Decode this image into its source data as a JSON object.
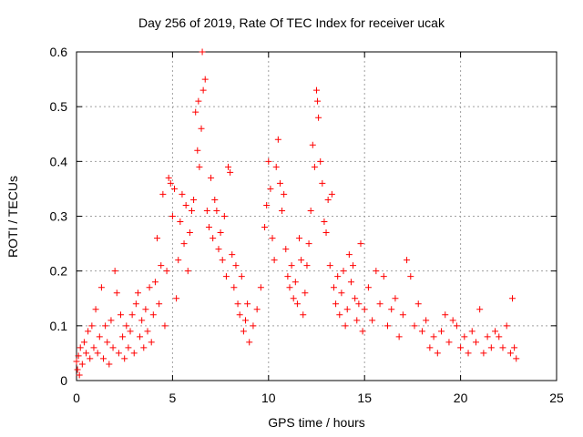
{
  "chart_data": {
    "type": "scatter",
    "title": "Day 256 of 2019, Rate Of TEC Index for receiver ucak",
    "xlabel": "GPS time / hours",
    "ylabel": "ROTI / TECUs",
    "xlim": [
      0,
      25
    ],
    "ylim": [
      0,
      0.6
    ],
    "xticks": [
      0,
      5,
      10,
      15,
      20,
      25
    ],
    "xtick_labels": [
      "0",
      "5",
      "10",
      "15",
      "20",
      "25"
    ],
    "yticks": [
      0,
      0.1,
      0.2,
      0.3,
      0.4,
      0.5,
      0.6
    ],
    "ytick_labels": [
      "0",
      "0.1",
      "0.2",
      "0.3",
      "0.4",
      "0.5",
      "0.6"
    ],
    "grid": true,
    "marker": "plus",
    "color": "#ff0000",
    "series": [
      {
        "points": [
          [
            0.0,
            0.035
          ],
          [
            0.05,
            0.02
          ],
          [
            0.1,
            0.045
          ],
          [
            0.15,
            0.01
          ],
          [
            0.2,
            0.06
          ],
          [
            0.3,
            0.03
          ],
          [
            0.4,
            0.07
          ],
          [
            0.5,
            0.05
          ],
          [
            0.6,
            0.09
          ],
          [
            0.7,
            0.04
          ],
          [
            0.8,
            0.1
          ],
          [
            0.9,
            0.06
          ],
          [
            1.0,
            0.13
          ],
          [
            1.1,
            0.05
          ],
          [
            1.2,
            0.08
          ],
          [
            1.3,
            0.17
          ],
          [
            1.4,
            0.04
          ],
          [
            1.5,
            0.1
          ],
          [
            1.6,
            0.07
          ],
          [
            1.7,
            0.03
          ],
          [
            1.8,
            0.11
          ],
          [
            1.9,
            0.06
          ],
          [
            2.0,
            0.2
          ],
          [
            2.1,
            0.16
          ],
          [
            2.2,
            0.05
          ],
          [
            2.3,
            0.12
          ],
          [
            2.4,
            0.08
          ],
          [
            2.5,
            0.04
          ],
          [
            2.6,
            0.1
          ],
          [
            2.7,
            0.06
          ],
          [
            2.8,
            0.09
          ],
          [
            2.9,
            0.12
          ],
          [
            3.0,
            0.05
          ],
          [
            3.1,
            0.14
          ],
          [
            3.2,
            0.16
          ],
          [
            3.3,
            0.08
          ],
          [
            3.4,
            0.11
          ],
          [
            3.5,
            0.06
          ],
          [
            3.6,
            0.13
          ],
          [
            3.7,
            0.09
          ],
          [
            3.8,
            0.17
          ],
          [
            3.9,
            0.07
          ],
          [
            4.0,
            0.12
          ],
          [
            4.1,
            0.18
          ],
          [
            4.2,
            0.26
          ],
          [
            4.3,
            0.14
          ],
          [
            4.4,
            0.21
          ],
          [
            4.5,
            0.34
          ],
          [
            4.6,
            0.1
          ],
          [
            4.7,
            0.2
          ],
          [
            4.8,
            0.37
          ],
          [
            4.9,
            0.36
          ],
          [
            5.0,
            0.3
          ],
          [
            5.1,
            0.35
          ],
          [
            5.2,
            0.15
          ],
          [
            5.3,
            0.22
          ],
          [
            5.4,
            0.29
          ],
          [
            5.5,
            0.34
          ],
          [
            5.6,
            0.25
          ],
          [
            5.7,
            0.32
          ],
          [
            5.8,
            0.2
          ],
          [
            5.9,
            0.27
          ],
          [
            6.0,
            0.31
          ],
          [
            6.1,
            0.33
          ],
          [
            6.2,
            0.49
          ],
          [
            6.3,
            0.42
          ],
          [
            6.35,
            0.51
          ],
          [
            6.4,
            0.39
          ],
          [
            6.5,
            0.46
          ],
          [
            6.55,
            0.6
          ],
          [
            6.6,
            0.53
          ],
          [
            6.7,
            0.55
          ],
          [
            6.8,
            0.31
          ],
          [
            6.9,
            0.28
          ],
          [
            7.0,
            0.37
          ],
          [
            7.1,
            0.26
          ],
          [
            7.2,
            0.33
          ],
          [
            7.3,
            0.31
          ],
          [
            7.4,
            0.24
          ],
          [
            7.5,
            0.27
          ],
          [
            7.6,
            0.22
          ],
          [
            7.7,
            0.3
          ],
          [
            7.8,
            0.19
          ],
          [
            7.9,
            0.39
          ],
          [
            8.0,
            0.38
          ],
          [
            8.1,
            0.23
          ],
          [
            8.2,
            0.17
          ],
          [
            8.3,
            0.21
          ],
          [
            8.4,
            0.14
          ],
          [
            8.5,
            0.12
          ],
          [
            8.6,
            0.19
          ],
          [
            8.7,
            0.09
          ],
          [
            8.8,
            0.11
          ],
          [
            8.9,
            0.14
          ],
          [
            9.0,
            0.07
          ],
          [
            9.2,
            0.1
          ],
          [
            9.4,
            0.13
          ],
          [
            9.6,
            0.17
          ],
          [
            9.8,
            0.28
          ],
          [
            9.9,
            0.32
          ],
          [
            10.0,
            0.4
          ],
          [
            10.1,
            0.35
          ],
          [
            10.2,
            0.26
          ],
          [
            10.3,
            0.22
          ],
          [
            10.4,
            0.39
          ],
          [
            10.5,
            0.44
          ],
          [
            10.6,
            0.36
          ],
          [
            10.7,
            0.31
          ],
          [
            10.8,
            0.34
          ],
          [
            10.9,
            0.24
          ],
          [
            11.0,
            0.19
          ],
          [
            11.1,
            0.17
          ],
          [
            11.2,
            0.21
          ],
          [
            11.3,
            0.15
          ],
          [
            11.4,
            0.18
          ],
          [
            11.5,
            0.14
          ],
          [
            11.6,
            0.26
          ],
          [
            11.7,
            0.22
          ],
          [
            11.8,
            0.12
          ],
          [
            11.9,
            0.16
          ],
          [
            12.0,
            0.21
          ],
          [
            12.1,
            0.25
          ],
          [
            12.2,
            0.31
          ],
          [
            12.3,
            0.43
          ],
          [
            12.4,
            0.39
          ],
          [
            12.5,
            0.53
          ],
          [
            12.55,
            0.51
          ],
          [
            12.6,
            0.48
          ],
          [
            12.7,
            0.4
          ],
          [
            12.8,
            0.36
          ],
          [
            12.9,
            0.29
          ],
          [
            13.0,
            0.27
          ],
          [
            13.1,
            0.33
          ],
          [
            13.2,
            0.21
          ],
          [
            13.3,
            0.34
          ],
          [
            13.4,
            0.17
          ],
          [
            13.5,
            0.14
          ],
          [
            13.6,
            0.19
          ],
          [
            13.7,
            0.12
          ],
          [
            13.8,
            0.16
          ],
          [
            13.9,
            0.2
          ],
          [
            14.0,
            0.1
          ],
          [
            14.1,
            0.13
          ],
          [
            14.2,
            0.23
          ],
          [
            14.3,
            0.18
          ],
          [
            14.4,
            0.21
          ],
          [
            14.5,
            0.15
          ],
          [
            14.6,
            0.11
          ],
          [
            14.7,
            0.14
          ],
          [
            14.8,
            0.25
          ],
          [
            14.9,
            0.09
          ],
          [
            15.0,
            0.13
          ],
          [
            15.2,
            0.17
          ],
          [
            15.4,
            0.11
          ],
          [
            15.6,
            0.2
          ],
          [
            15.8,
            0.14
          ],
          [
            16.0,
            0.19
          ],
          [
            16.2,
            0.1
          ],
          [
            16.4,
            0.13
          ],
          [
            16.6,
            0.15
          ],
          [
            16.8,
            0.08
          ],
          [
            17.0,
            0.12
          ],
          [
            17.2,
            0.22
          ],
          [
            17.4,
            0.19
          ],
          [
            17.6,
            0.1
          ],
          [
            17.8,
            0.14
          ],
          [
            18.0,
            0.09
          ],
          [
            18.2,
            0.11
          ],
          [
            18.4,
            0.06
          ],
          [
            18.6,
            0.08
          ],
          [
            18.8,
            0.05
          ],
          [
            19.0,
            0.09
          ],
          [
            19.2,
            0.12
          ],
          [
            19.4,
            0.07
          ],
          [
            19.6,
            0.11
          ],
          [
            19.8,
            0.1
          ],
          [
            20.0,
            0.06
          ],
          [
            20.2,
            0.08
          ],
          [
            20.4,
            0.05
          ],
          [
            20.6,
            0.09
          ],
          [
            20.8,
            0.07
          ],
          [
            21.0,
            0.13
          ],
          [
            21.2,
            0.05
          ],
          [
            21.4,
            0.08
          ],
          [
            21.6,
            0.06
          ],
          [
            21.8,
            0.09
          ],
          [
            22.0,
            0.08
          ],
          [
            22.2,
            0.06
          ],
          [
            22.4,
            0.1
          ],
          [
            22.6,
            0.05
          ],
          [
            22.7,
            0.15
          ],
          [
            22.8,
            0.06
          ],
          [
            22.9,
            0.04
          ]
        ]
      }
    ]
  }
}
